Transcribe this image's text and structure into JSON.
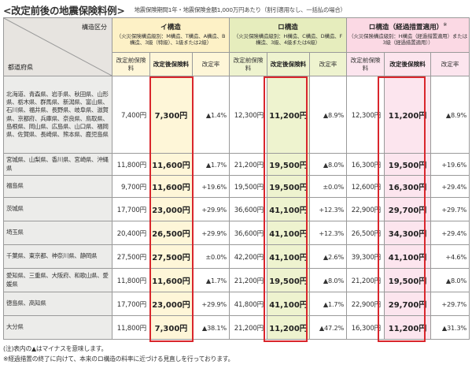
{
  "title": "<改定前後の地震保険料例>",
  "subtitle": "地震保険期間1年・地震保険金額1,000万円あたり（割引適用なし、一括払の場合）",
  "header": {
    "corner_top": "構造区分",
    "corner_bottom": "都道府県",
    "groups": [
      {
        "name": "イ構造",
        "name_sup": "",
        "note": "（火災保険構造級別：M構造、T構造、A構造、B構造、3級（特級）、1級または2級）"
      },
      {
        "name": "ロ構造",
        "name_sup": "",
        "note": "（火災保険構造級別：H構造、C構造、D構造、F構造、3級、4級または6級）"
      },
      {
        "name": "ロ構造（経過措置適用）",
        "name_sup": "※",
        "note": "（火災保険構造級別：H構造（経過措置適用）または3級（経過措置適用））"
      }
    ],
    "sub": [
      "改定前保険料",
      "改定後保険料",
      "改定率"
    ]
  },
  "rows": [
    {
      "pref": "北海道、青森県、岩手県、秋田県、山形県、栃木県、群馬県、新潟県、富山県、石川県、福井県、長野県、岐阜県、滋賀県、京都府、兵庫県、奈良県、鳥取県、島根県、岡山県、広島県、山口県、福岡県、佐賀県、長崎県、熊本県、鹿児島県",
      "v": [
        "7,400円",
        "7,300円",
        "▲1.4%",
        "12,300円",
        "11,200円",
        "▲8.9%",
        "12,300円",
        "11,200円",
        "▲8.9%"
      ]
    },
    {
      "pref": "宮城県、山梨県、香川県、宮崎県、沖縄県",
      "v": [
        "11,800円",
        "11,600円",
        "▲1.7%",
        "21,200円",
        "19,500円",
        "▲8.0%",
        "16,300円",
        "19,500円",
        "+19.6%"
      ]
    },
    {
      "pref": "福島県",
      "v": [
        "9,700円",
        "11,600円",
        "+19.6%",
        "19,500円",
        "19,500円",
        "±0.0%",
        "12,600円",
        "16,300円",
        "+29.4%"
      ]
    },
    {
      "pref": "茨城県",
      "v": [
        "17,700円",
        "23,000円",
        "+29.9%",
        "36,600円",
        "41,100円",
        "+12.3%",
        "22,900円",
        "29,700円",
        "+29.7%"
      ]
    },
    {
      "pref": "埼玉県",
      "v": [
        "20,400円",
        "26,500円",
        "+29.9%",
        "36,600円",
        "41,100円",
        "+12.3%",
        "26,500円",
        "34,300円",
        "+29.4%"
      ]
    },
    {
      "pref": "千葉県、東京都、神奈川県、静岡県",
      "v": [
        "27,500円",
        "27,500円",
        "±0.0%",
        "42,200円",
        "41,100円",
        "▲2.6%",
        "39,300円",
        "41,100円",
        "+4.6%"
      ]
    },
    {
      "pref": "愛知県、三重県、大阪府、和歌山県、愛媛県",
      "v": [
        "11,800円",
        "11,600円",
        "▲1.7%",
        "21,200円",
        "19,500円",
        "▲8.0%",
        "21,200円",
        "19,500円",
        "▲8.0%"
      ]
    },
    {
      "pref": "徳島県、高知県",
      "v": [
        "17,700円",
        "23,000円",
        "+29.9%",
        "41,800円",
        "41,100円",
        "▲1.7%",
        "22,900円",
        "29,700円",
        "+29.7%"
      ]
    },
    {
      "pref": "大分県",
      "v": [
        "11,800円",
        "7,300円",
        "▲38.1%",
        "21,200円",
        "11,200円",
        "▲47.2%",
        "16,300円",
        "11,200円",
        "▲31.3%"
      ]
    }
  ],
  "notes": [
    "(注)表内の▲はマイナスを意味します。",
    "※経過措置の終了に向けて、本来のロ構造の料率に近づける見直しを行っております。"
  ],
  "colors": {
    "group1": "#fdf1c6",
    "group2": "#e6edbd",
    "group3": "#fbd9e4",
    "highlight_border": "#d9262c",
    "corner": "#e7e4e0"
  }
}
